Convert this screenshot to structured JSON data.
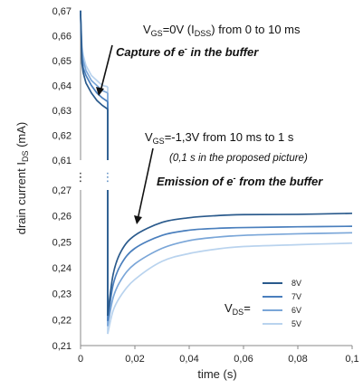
{
  "chart_data": {
    "type": "line",
    "title": "",
    "xlabel": "time (s)",
    "ylabel": {
      "main": "drain current I",
      "sub": "DS",
      "unit": " (mA)"
    },
    "x_ticks": [
      "0",
      "0,02",
      "0,04",
      "0,06",
      "0,08",
      "0,1"
    ],
    "x_tick_values": [
      0,
      0.02,
      0.04,
      0.06,
      0.08,
      0.1
    ],
    "xlim": [
      0,
      0.1
    ],
    "y_ticks_upper": [
      "0,67",
      "0,66",
      "0,65",
      "0,64",
      "0,63",
      "0,62",
      "0,61"
    ],
    "y_ticks_upper_values": [
      0.67,
      0.66,
      0.65,
      0.64,
      0.63,
      0.62,
      0.61
    ],
    "y_ticks_lower": [
      "0,27",
      "0,26",
      "0,25",
      "0,24",
      "0,23",
      "0,22",
      "0,21"
    ],
    "y_ticks_lower_values": [
      0.27,
      0.26,
      0.25,
      0.24,
      0.23,
      0.22,
      0.21
    ],
    "ylim_upper": [
      0.61,
      0.67
    ],
    "ylim_lower": [
      0.21,
      0.27
    ],
    "axis_break": true,
    "break_dots": "⋮",
    "grid": false,
    "legend_position": "bottom-right",
    "legend_title": {
      "main": "V",
      "sub": "DS",
      "suffix": "="
    },
    "series": [
      {
        "name": "8V",
        "color": "#2a5a8c",
        "capture": {
          "x": [
            0.0,
            0.0005,
            0.001,
            0.002,
            0.004,
            0.006,
            0.008,
            0.01
          ],
          "y": [
            0.669,
            0.649,
            0.645,
            0.641,
            0.637,
            0.634,
            0.632,
            0.6305
          ]
        },
        "emission": {
          "x": [
            0.01,
            0.012,
            0.015,
            0.02,
            0.03,
            0.04,
            0.05,
            0.06,
            0.08,
            0.1
          ],
          "y": [
            0.2215,
            0.2375,
            0.2465,
            0.2525,
            0.2575,
            0.2593,
            0.2601,
            0.2605,
            0.2606,
            0.261
          ]
        }
      },
      {
        "name": "7V",
        "color": "#4a7fbd",
        "capture": {
          "x": [
            0.0,
            0.0005,
            0.001,
            0.002,
            0.004,
            0.006,
            0.008,
            0.01
          ],
          "y": [
            0.669,
            0.651,
            0.647,
            0.644,
            0.64,
            0.637,
            0.635,
            0.6335
          ]
        },
        "emission": {
          "x": [
            0.01,
            0.012,
            0.015,
            0.02,
            0.03,
            0.04,
            0.05,
            0.06,
            0.08,
            0.1
          ],
          "y": [
            0.2195,
            0.2335,
            0.2415,
            0.2475,
            0.2525,
            0.2545,
            0.2552,
            0.2555,
            0.2558,
            0.256
          ]
        }
      },
      {
        "name": "6V",
        "color": "#7aa6d8",
        "capture": {
          "x": [
            0.0,
            0.0005,
            0.001,
            0.002,
            0.004,
            0.006,
            0.008,
            0.01
          ],
          "y": [
            0.669,
            0.654,
            0.65,
            0.646,
            0.642,
            0.64,
            0.638,
            0.637
          ]
        },
        "emission": {
          "x": [
            0.01,
            0.012,
            0.015,
            0.02,
            0.03,
            0.04,
            0.05,
            0.06,
            0.08,
            0.1
          ],
          "y": [
            0.2175,
            0.2285,
            0.2355,
            0.2415,
            0.2475,
            0.2505,
            0.2518,
            0.2525,
            0.2531,
            0.2535
          ]
        }
      },
      {
        "name": "5V",
        "color": "#b9d3ee",
        "capture": {
          "x": [
            0.0,
            0.0005,
            0.001,
            0.002,
            0.004,
            0.006,
            0.008,
            0.01
          ],
          "y": [
            0.669,
            0.656,
            0.652,
            0.648,
            0.644,
            0.642,
            0.64,
            0.6395
          ]
        },
        "emission": {
          "x": [
            0.01,
            0.012,
            0.015,
            0.02,
            0.03,
            0.04,
            0.05,
            0.06,
            0.08,
            0.1
          ],
          "y": [
            0.2145,
            0.2235,
            0.2295,
            0.2355,
            0.2425,
            0.2455,
            0.2472,
            0.2482,
            0.2489,
            0.2495
          ]
        }
      }
    ],
    "annotations": {
      "capture_line1": {
        "prefix": "V",
        "sub": "GS",
        "mid": "=0V (I",
        "sub2": "DSS",
        "suffix": ") from 0 to 10 ms"
      },
      "capture_line2": {
        "prefix": "Capture of e",
        "sup": "-",
        "suffix": " in the buffer"
      },
      "emission_line1": {
        "prefix": "V",
        "sub": "GS",
        "suffix": "=-1,3V  from 10 ms to 1 s"
      },
      "emission_line2": "(0,1 s in the proposed picture)",
      "emission_line3": {
        "prefix": "Emission of e",
        "sup": "-",
        "suffix": " from the buffer"
      }
    }
  }
}
